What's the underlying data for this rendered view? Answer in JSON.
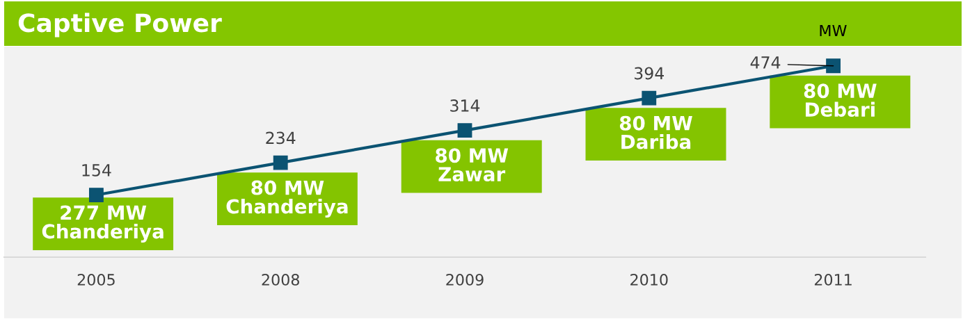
{
  "chart_data": {
    "type": "line",
    "title": "Captive Power",
    "ylabel": "MW",
    "categories": [
      "2005",
      "2008",
      "2009",
      "2010",
      "2011"
    ],
    "values": [
      154,
      234,
      314,
      394,
      474
    ],
    "color": "#0b5372",
    "ylim": [
      0,
      520
    ],
    "marker": "square",
    "line_style": "solid",
    "data_labels": true,
    "tick_labels": "x",
    "annotations": [
      {
        "text": "277 MW\nChanderiya",
        "x": "2005",
        "y": 154
      },
      {
        "text": "80 MW\nChanderiya",
        "x": "2008",
        "y": 234
      },
      {
        "text": "80 MW\nZawar",
        "x": "2009",
        "y": 314
      },
      {
        "text": "80 MW\nDariba",
        "x": "2010",
        "y": 394
      },
      {
        "text": "80 MW\nDebari",
        "x": "2011",
        "y": 474
      }
    ]
  }
}
